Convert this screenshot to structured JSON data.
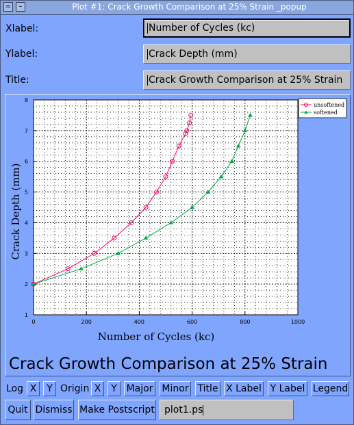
{
  "window": {
    "title": "Plot #1: Crack Growth Comparison at 25% Strain _popup"
  },
  "fields": {
    "xlabel": {
      "label": "Xlabel:",
      "value": "Number of Cycles (kc)"
    },
    "ylabel": {
      "label": "Ylabel:",
      "value": "Crack Depth (mm)"
    },
    "title": {
      "label": "Title:",
      "value": "Crack Growth Comparison at 25% Strain"
    }
  },
  "caption": "Crack Growth Comparison at 25% Strain",
  "toolbar": {
    "log": "Log",
    "log_x": "X",
    "log_y": "Y",
    "origin": "Origin",
    "origin_x": "X",
    "origin_y": "Y",
    "major": "Major",
    "minor": "Minor",
    "title": "Title",
    "xlabel": "X Label",
    "ylabel": "Y Label",
    "legend": "Legend"
  },
  "bottom": {
    "quit": "Quit",
    "dismiss": "Dismiss",
    "postscript": "Make Postscript",
    "filename": "plot1.ps"
  },
  "chart_data": {
    "type": "line",
    "title": "",
    "xlabel": "Number of Cycles (kc)",
    "ylabel": "Crack Depth (mm)",
    "xlim": [
      0,
      1000
    ],
    "ylim": [
      1,
      8
    ],
    "xticks": [
      0,
      200,
      400,
      600,
      800,
      1000
    ],
    "yticks": [
      1,
      2,
      3,
      4,
      5,
      6,
      7,
      8
    ],
    "grid": true,
    "legend_position": "top-right",
    "series": [
      {
        "name": "unsoftened",
        "color": "#ff0066",
        "marker": "circle",
        "points": [
          [
            0,
            2
          ],
          [
            130,
            2.5
          ],
          [
            230,
            3
          ],
          [
            305,
            3.5
          ],
          [
            370,
            4
          ],
          [
            425,
            4.5
          ],
          [
            465,
            5
          ],
          [
            500,
            5.5
          ],
          [
            525,
            6
          ],
          [
            550,
            6.5
          ],
          [
            575,
            6.9
          ],
          [
            580,
            7
          ],
          [
            590,
            7.25
          ],
          [
            595,
            7.5
          ]
        ]
      },
      {
        "name": "softened",
        "color": "#00aa44",
        "marker": "triangle",
        "points": [
          [
            0,
            2
          ],
          [
            180,
            2.5
          ],
          [
            320,
            3
          ],
          [
            425,
            3.5
          ],
          [
            520,
            4
          ],
          [
            600,
            4.5
          ],
          [
            660,
            5
          ],
          [
            710,
            5.5
          ],
          [
            750,
            6
          ],
          [
            775,
            6.5
          ],
          [
            800,
            7
          ],
          [
            820,
            7.5
          ]
        ]
      }
    ]
  }
}
